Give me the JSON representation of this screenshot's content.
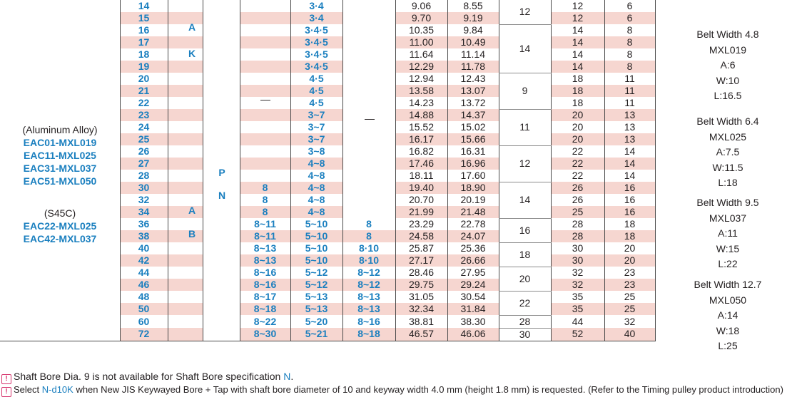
{
  "table": {
    "rows": [
      {
        "no": "14",
        "c1": "3·4",
        "c2": "",
        "d1": "9.06",
        "d2": "8.55",
        "f": "12",
        "h": "6"
      },
      {
        "no": "15",
        "c1": "3·4",
        "c2": "",
        "d1": "9.70",
        "d2": "9.19",
        "f": "12",
        "h": "6"
      },
      {
        "no": "16",
        "c1": "3·4·5",
        "c2": "",
        "d1": "10.35",
        "d2": "9.84",
        "f": "14",
        "h": "8"
      },
      {
        "no": "17",
        "c1": "3·4·5",
        "c2": "",
        "d1": "11.00",
        "d2": "10.49",
        "f": "14",
        "h": "8"
      },
      {
        "no": "18",
        "c1": "3·4·5",
        "c2": "",
        "d1": "11.64",
        "d2": "11.14",
        "f": "14",
        "h": "8"
      },
      {
        "no": "19",
        "c1": "3·4·5",
        "c2": "",
        "d1": "12.29",
        "d2": "11.78",
        "f": "14",
        "h": "8"
      },
      {
        "no": "20",
        "c1": "4·5",
        "c2": "",
        "d1": "12.94",
        "d2": "12.43",
        "f": "18",
        "h": "11"
      },
      {
        "no": "21",
        "c1": "4·5",
        "c2": "",
        "d1": "13.58",
        "d2": "13.07",
        "f": "18",
        "h": "11"
      },
      {
        "no": "22",
        "c1": "4·5",
        "c2": "",
        "d1": "14.23",
        "d2": "13.72",
        "f": "18",
        "h": "11"
      },
      {
        "no": "23",
        "c1": "3~7",
        "c2": "",
        "d1": "14.88",
        "d2": "14.37",
        "f": "20",
        "h": "13"
      },
      {
        "no": "24",
        "c1": "3~7",
        "c2": "",
        "d1": "15.52",
        "d2": "15.02",
        "f": "20",
        "h": "13"
      },
      {
        "no": "25",
        "c1": "3~7",
        "c2": "",
        "d1": "16.17",
        "d2": "15.66",
        "f": "20",
        "h": "13"
      },
      {
        "no": "26",
        "c1": "3~8",
        "c2": "",
        "d1": "16.82",
        "d2": "16.31",
        "f": "22",
        "h": "14"
      },
      {
        "no": "27",
        "c1": "4~8",
        "c2": "",
        "d1": "17.46",
        "d2": "16.96",
        "f": "22",
        "h": "14"
      },
      {
        "no": "28",
        "c1": "4~8",
        "c2": "",
        "d1": "18.11",
        "d2": "17.60",
        "f": "22",
        "h": "14"
      },
      {
        "no": "30",
        "c0": "8",
        "c1": "4~8",
        "c2": "",
        "d1": "19.40",
        "d2": "18.90",
        "f": "26",
        "h": "16"
      },
      {
        "no": "32",
        "c0": "8",
        "c1": "4~8",
        "c2": "",
        "d1": "20.70",
        "d2": "20.19",
        "f": "26",
        "h": "16"
      },
      {
        "no": "34",
        "c0": "8",
        "c1": "4~8",
        "c2": "",
        "d1": "21.99",
        "d2": "21.48",
        "f": "25",
        "h": "16"
      },
      {
        "no": "36",
        "c0": "8~11",
        "c1": "5~10",
        "c2": "8",
        "d1": "23.29",
        "d2": "22.78",
        "f": "28",
        "h": "18"
      },
      {
        "no": "38",
        "c0": "8~11",
        "c1": "5~10",
        "c2": "8",
        "d1": "24.58",
        "d2": "24.07",
        "f": "28",
        "h": "18"
      },
      {
        "no": "40",
        "c0": "8~13",
        "c1": "5~10",
        "c2": "8·10",
        "d1": "25.87",
        "d2": "25.36",
        "f": "30",
        "h": "20"
      },
      {
        "no": "42",
        "c0": "8~13",
        "c1": "5~10",
        "c2": "8·10",
        "d1": "27.17",
        "d2": "26.66",
        "f": "30",
        "h": "20"
      },
      {
        "no": "44",
        "c0": "8~16",
        "c1": "5~12",
        "c2": "8~12",
        "d1": "28.46",
        "d2": "27.95",
        "f": "32",
        "h": "23"
      },
      {
        "no": "46",
        "c0": "8~16",
        "c1": "5~12",
        "c2": "8~12",
        "d1": "29.75",
        "d2": "29.24",
        "f": "32",
        "h": "23"
      },
      {
        "no": "48",
        "c0": "8~17",
        "c1": "5~13",
        "c2": "8~13",
        "d1": "31.05",
        "d2": "30.54",
        "f": "35",
        "h": "25"
      },
      {
        "no": "50",
        "c0": "8~18",
        "c1": "5~13",
        "c2": "8~13",
        "d1": "32.34",
        "d2": "31.84",
        "f": "35",
        "h": "25"
      },
      {
        "no": "60",
        "c0": "8~22",
        "c1": "5~20",
        "c2": "8~16",
        "d1": "38.81",
        "d2": "38.30",
        "f": "44",
        "h": "32"
      },
      {
        "no": "72",
        "c0": "8~30",
        "c1": "5~21",
        "c2": "8~18",
        "d1": "46.57",
        "d2": "46.06",
        "f": "52",
        "h": "40"
      }
    ],
    "e_values": [
      {
        "row": 0,
        "span": 2,
        "text": "12"
      },
      {
        "row": 2,
        "span": 4,
        "text": "14"
      },
      {
        "row": 6,
        "span": 3,
        "text": "9"
      },
      {
        "row": 9,
        "span": 3,
        "text": "11"
      },
      {
        "row": 12,
        "span": 3,
        "text": "12"
      },
      {
        "row": 15,
        "span": 3,
        "text": "14"
      },
      {
        "row": 18,
        "span": 2,
        "text": "16"
      },
      {
        "row": 20,
        "span": 2,
        "text": "18"
      },
      {
        "row": 22,
        "span": 2,
        "text": "20"
      },
      {
        "row": 24,
        "span": 2,
        "text": "22"
      },
      {
        "row": 26,
        "span": 1,
        "text": "28"
      },
      {
        "row": 27,
        "span": 1,
        "text": "30"
      }
    ],
    "letters": {
      "a1": "A",
      "k": "K",
      "p": "P",
      "n": "N",
      "a2": "A",
      "b": "B"
    },
    "dash": "—"
  },
  "materials": {
    "aluminum_label": "(Aluminum Alloy)",
    "aluminum_parts": [
      "EAC01-MXL019",
      "EAC11-MXL025",
      "EAC31-MXL037",
      "EAC51-MXL050"
    ],
    "steel_label": "(S45C)",
    "steel_parts": [
      "EAC22-MXL025",
      "EAC42-MXL037"
    ]
  },
  "belts": [
    {
      "width": "Belt Width 4.8",
      "model": "MXL019",
      "a": "A:6",
      "w": "W:10",
      "l": "L:16.5"
    },
    {
      "width": "Belt Width 6.4",
      "model": "MXL025",
      "a": "A:7.5",
      "w": "W:11.5",
      "l": "L:18"
    },
    {
      "width": "Belt Width 9.5",
      "model": "MXL037",
      "a": "A:11",
      "w": "W:15",
      "l": "L:22"
    },
    {
      "width": "Belt Width 12.7",
      "model": "MXL050",
      "a": "A:14",
      "w": "W:18",
      "l": "L:25"
    }
  ],
  "notes": {
    "warn_symbol": "!",
    "note1_text": "Shaft Bore Dia. 9 is not available for Shaft Bore specification ",
    "note1_highlight": "N",
    "note1_end": ".",
    "note2_start": "Select ",
    "note2_highlight": "N-d10K",
    "note2_text": " when New JIS Keywayed Bore + Tap with shaft bore diameter of 10 and keyway width 4.0 mm (height 1.8 mm) is requested. (Refer to the Timing pulley product introduction)"
  }
}
